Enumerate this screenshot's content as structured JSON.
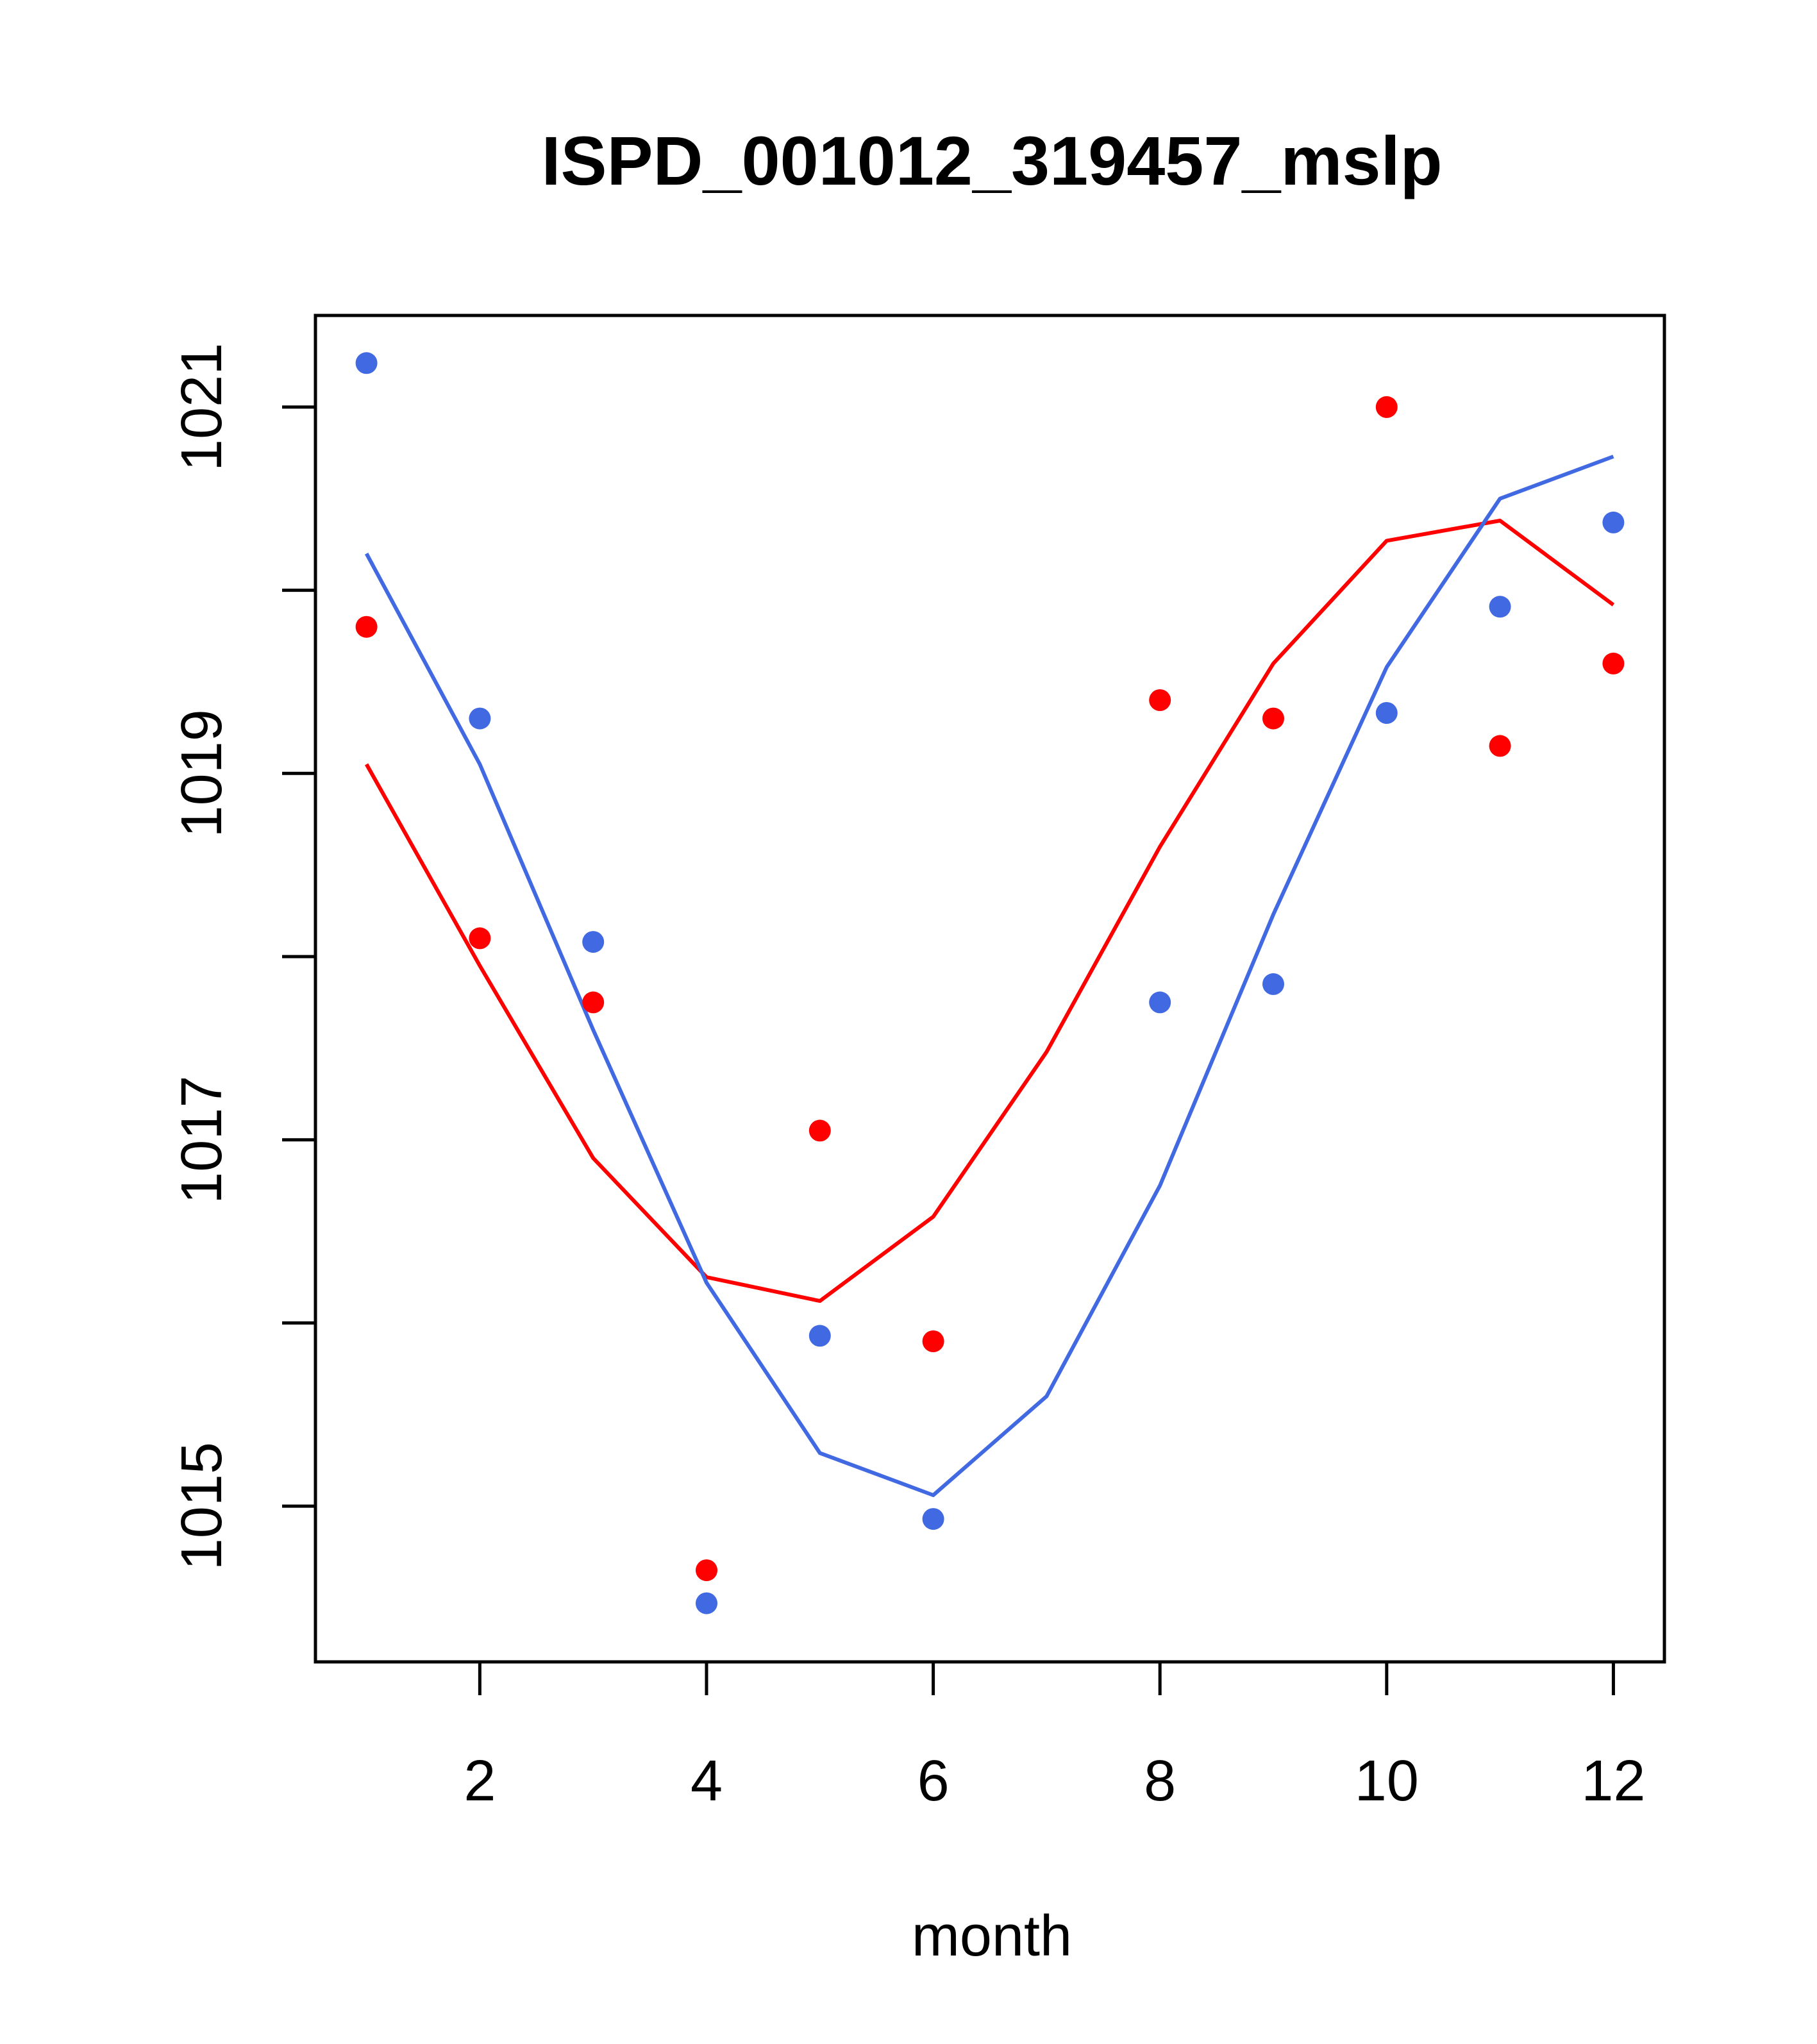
{
  "chart_data": {
    "type": "line",
    "title": "ISPD_001012_319457_mslp",
    "xlabel": "month",
    "ylabel": "",
    "xlim": [
      0.55,
      12.45
    ],
    "ylim": [
      1014.15,
      1021.5
    ],
    "xticks": [
      2,
      4,
      6,
      8,
      10,
      12
    ],
    "xtick_labels": [
      "2",
      "4",
      "6",
      "8",
      "10",
      "12"
    ],
    "yticks": [
      1015,
      1016,
      1017,
      1018,
      1019,
      1020,
      1021
    ],
    "ytick_labels": [
      "1015",
      "",
      "1017",
      "",
      "1019",
      "",
      "1021"
    ],
    "grid": false,
    "legend": "none",
    "x": [
      1,
      2,
      3,
      4,
      5,
      6,
      7,
      8,
      9,
      10,
      11,
      12
    ],
    "series": [
      {
        "name": "red-points",
        "kind": "scatter",
        "color": "#ff0000",
        "values": [
          1019.8,
          1018.1,
          1017.75,
          1014.65,
          1017.05,
          1015.9,
          null,
          1019.4,
          1019.3,
          1021.0,
          1019.15,
          1019.6
        ]
      },
      {
        "name": "red-line",
        "kind": "line",
        "color": "#ff0000",
        "values": [
          1019.05,
          1017.95,
          1016.9,
          1016.25,
          1016.12,
          1016.58,
          1017.48,
          1018.6,
          1019.6,
          1020.27,
          1020.38,
          1019.92
        ]
      },
      {
        "name": "blue-points",
        "kind": "scatter",
        "color": "#4169e1",
        "values": [
          1021.24,
          1019.3,
          1018.08,
          1014.47,
          1015.93,
          1014.93,
          null,
          1017.75,
          1017.85,
          1019.33,
          1019.91,
          1020.37
        ]
      },
      {
        "name": "blue-line",
        "kind": "line",
        "color": "#4169e1",
        "values": [
          1020.2,
          1019.05,
          1017.6,
          1016.22,
          1015.29,
          1015.06,
          1015.6,
          1016.75,
          1018.23,
          1019.58,
          1020.5,
          1020.73
        ]
      }
    ]
  }
}
